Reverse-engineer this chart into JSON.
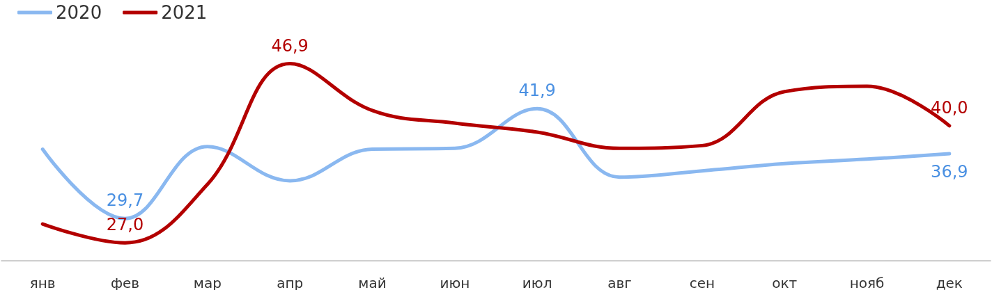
{
  "chart_data": {
    "type": "line",
    "categories": [
      "янв",
      "фев",
      "мар",
      "апр",
      "май",
      "июн",
      "июл",
      "авг",
      "сен",
      "окт",
      "нояб",
      "дек"
    ],
    "series": [
      {
        "name": "2020",
        "color": "#8ab8f0",
        "values": [
          37.4,
          29.7,
          37.7,
          33.9,
          37.4,
          37.5,
          41.9,
          34.3,
          35.0,
          35.8,
          36.3,
          36.9
        ],
        "value_labels": [
          null,
          "29,7",
          null,
          null,
          null,
          null,
          "41,9",
          null,
          null,
          null,
          null,
          "36,9"
        ]
      },
      {
        "name": "2021",
        "color": "#b30000",
        "values": [
          29.1,
          27.0,
          33.5,
          46.9,
          41.7,
          40.3,
          39.3,
          37.5,
          37.8,
          43.8,
          44.4,
          40.0
        ],
        "value_labels": [
          null,
          "27,0",
          null,
          "46,9",
          null,
          null,
          null,
          null,
          null,
          null,
          null,
          "40,0"
        ]
      }
    ],
    "tick_labels": "x",
    "legend": "top left",
    "grid": false,
    "marker": "none",
    "line_style": "solid"
  }
}
